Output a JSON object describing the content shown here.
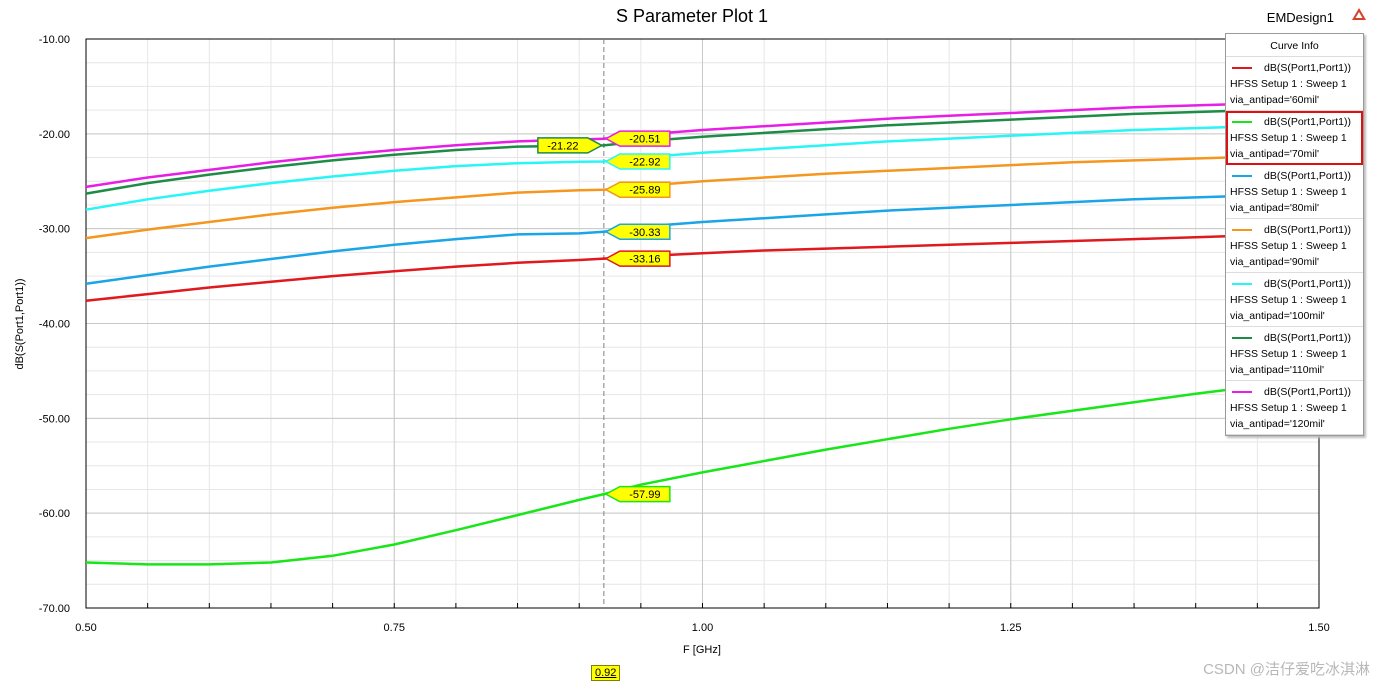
{
  "header": {
    "title": "S Parameter Plot 1",
    "design": "EMDesign1"
  },
  "legend": {
    "title": "Curve Info",
    "selected_index": 1,
    "items": [
      {
        "name": "dB(S(Port1,Port1))",
        "setup": "HFSS Setup 1 : Sweep 1",
        "param": "via_antipad='60mil'",
        "color": "#e0191e"
      },
      {
        "name": "dB(S(Port1,Port1))",
        "setup": "HFSS Setup 1 : Sweep 1",
        "param": "via_antipad='70mil'",
        "color": "#19e619"
      },
      {
        "name": "dB(S(Port1,Port1))",
        "setup": "HFSS Setup 1 : Sweep 1",
        "param": "via_antipad='80mil'",
        "color": "#19a5e6"
      },
      {
        "name": "dB(S(Port1,Port1))",
        "setup": "HFSS Setup 1 : Sweep 1",
        "param": "via_antipad='90mil'",
        "color": "#f5961e"
      },
      {
        "name": "dB(S(Port1,Port1))",
        "setup": "HFSS Setup 1 : Sweep 1",
        "param": "via_antipad='100mil'",
        "color": "#28f5f5"
      },
      {
        "name": "dB(S(Port1,Port1))",
        "setup": "HFSS Setup 1 : Sweep 1",
        "param": "via_antipad='110mil'",
        "color": "#1e8c46"
      },
      {
        "name": "dB(S(Port1,Port1))",
        "setup": "HFSS Setup 1 : Sweep 1",
        "param": "via_antipad='120mil'",
        "color": "#e61ee6"
      }
    ]
  },
  "marker": {
    "x": 0.92,
    "x_label": "0.92"
  },
  "watermark": "CSDN @洁仔爱吃冰淇淋",
  "chart_data": {
    "type": "line",
    "title": "S Parameter Plot 1",
    "xlabel": "F [GHz]",
    "ylabel": "dB(S(Port1,Port1))",
    "xlim": [
      0.5,
      1.5
    ],
    "ylim": [
      -70,
      -10
    ],
    "xticks": [
      0.5,
      0.75,
      1.0,
      1.25,
      1.5
    ],
    "xtick_labels": [
      "0.50",
      "0.75",
      "1.00",
      "1.25",
      "1.50"
    ],
    "yticks": [
      -10,
      -20,
      -30,
      -40,
      -50,
      -60,
      -70
    ],
    "ytick_labels": [
      "-10.00",
      "-20.00",
      "-30.00",
      "-40.00",
      "-50.00",
      "-60.00",
      "-70.00"
    ],
    "grid": true,
    "legend_position": "top-right",
    "x": [
      0.5,
      0.55,
      0.6,
      0.65,
      0.7,
      0.75,
      0.8,
      0.85,
      0.9,
      0.92,
      0.95,
      1.0,
      1.05,
      1.1,
      1.15,
      1.2,
      1.25,
      1.3,
      1.35,
      1.4,
      1.45,
      1.5
    ],
    "series": [
      {
        "name": "via_antipad='60mil'",
        "color": "#e0191e",
        "values": [
          -37.6,
          -36.9,
          -36.2,
          -35.6,
          -35.0,
          -34.5,
          -34.0,
          -33.6,
          -33.3,
          -33.16,
          -32.9,
          -32.6,
          -32.3,
          -32.1,
          -31.9,
          -31.7,
          -31.5,
          -31.3,
          -31.1,
          -30.9,
          -30.7,
          -30.5
        ]
      },
      {
        "name": "via_antipad='70mil'",
        "color": "#19e619",
        "values": [
          -65.2,
          -65.4,
          -65.4,
          -65.2,
          -64.5,
          -63.3,
          -61.8,
          -60.2,
          -58.6,
          -57.99,
          -57.0,
          -55.7,
          -54.5,
          -53.3,
          -52.2,
          -51.1,
          -50.1,
          -49.2,
          -48.3,
          -47.4,
          -46.6,
          -45.9
        ]
      },
      {
        "name": "via_antipad='80mil'",
        "color": "#19a5e6",
        "values": [
          -35.8,
          -34.9,
          -34.0,
          -33.2,
          -32.4,
          -31.7,
          -31.1,
          -30.6,
          -30.5,
          -30.33,
          -29.8,
          -29.3,
          -28.9,
          -28.5,
          -28.1,
          -27.8,
          -27.5,
          -27.2,
          -26.9,
          -26.7,
          -26.5,
          -26.3
        ]
      },
      {
        "name": "via_antipad='90mil'",
        "color": "#f5961e",
        "values": [
          -31.0,
          -30.1,
          -29.3,
          -28.5,
          -27.8,
          -27.2,
          -26.7,
          -26.2,
          -25.95,
          -25.89,
          -25.5,
          -25.0,
          -24.6,
          -24.2,
          -23.9,
          -23.6,
          -23.3,
          -23.0,
          -22.8,
          -22.6,
          -22.4,
          -22.2
        ]
      },
      {
        "name": "via_antipad='100mil'",
        "color": "#28f5f5",
        "values": [
          -28.0,
          -26.9,
          -26.0,
          -25.2,
          -24.5,
          -23.9,
          -23.4,
          -23.1,
          -22.95,
          -22.92,
          -22.5,
          -22.0,
          -21.6,
          -21.2,
          -20.8,
          -20.5,
          -20.2,
          -19.9,
          -19.6,
          -19.4,
          -19.2,
          -19.0
        ]
      },
      {
        "name": "via_antipad='110mil'",
        "color": "#1e8c46",
        "values": [
          -26.3,
          -25.2,
          -24.3,
          -23.5,
          -22.8,
          -22.2,
          -21.7,
          -21.35,
          -21.25,
          -21.22,
          -20.8,
          -20.3,
          -19.9,
          -19.5,
          -19.1,
          -18.8,
          -18.5,
          -18.2,
          -17.9,
          -17.7,
          -17.5,
          -17.3
        ]
      },
      {
        "name": "via_antipad='120mil'",
        "color": "#e61ee6",
        "values": [
          -25.6,
          -24.6,
          -23.8,
          -23.0,
          -22.3,
          -21.7,
          -21.2,
          -20.8,
          -20.6,
          -20.51,
          -20.1,
          -19.6,
          -19.2,
          -18.8,
          -18.4,
          -18.1,
          -17.8,
          -17.5,
          -17.2,
          -17.0,
          -16.8,
          -16.6
        ]
      }
    ],
    "marker_values": [
      {
        "value": "-33.16",
        "series": 0
      },
      {
        "value": "-57.99",
        "series": 1
      },
      {
        "value": "-30.33",
        "series": 2
      },
      {
        "value": "-25.89",
        "series": 3
      },
      {
        "value": "-22.92",
        "series": 4
      },
      {
        "value": "-21.22",
        "series": 5
      },
      {
        "value": "-20.51",
        "series": 6
      }
    ]
  }
}
